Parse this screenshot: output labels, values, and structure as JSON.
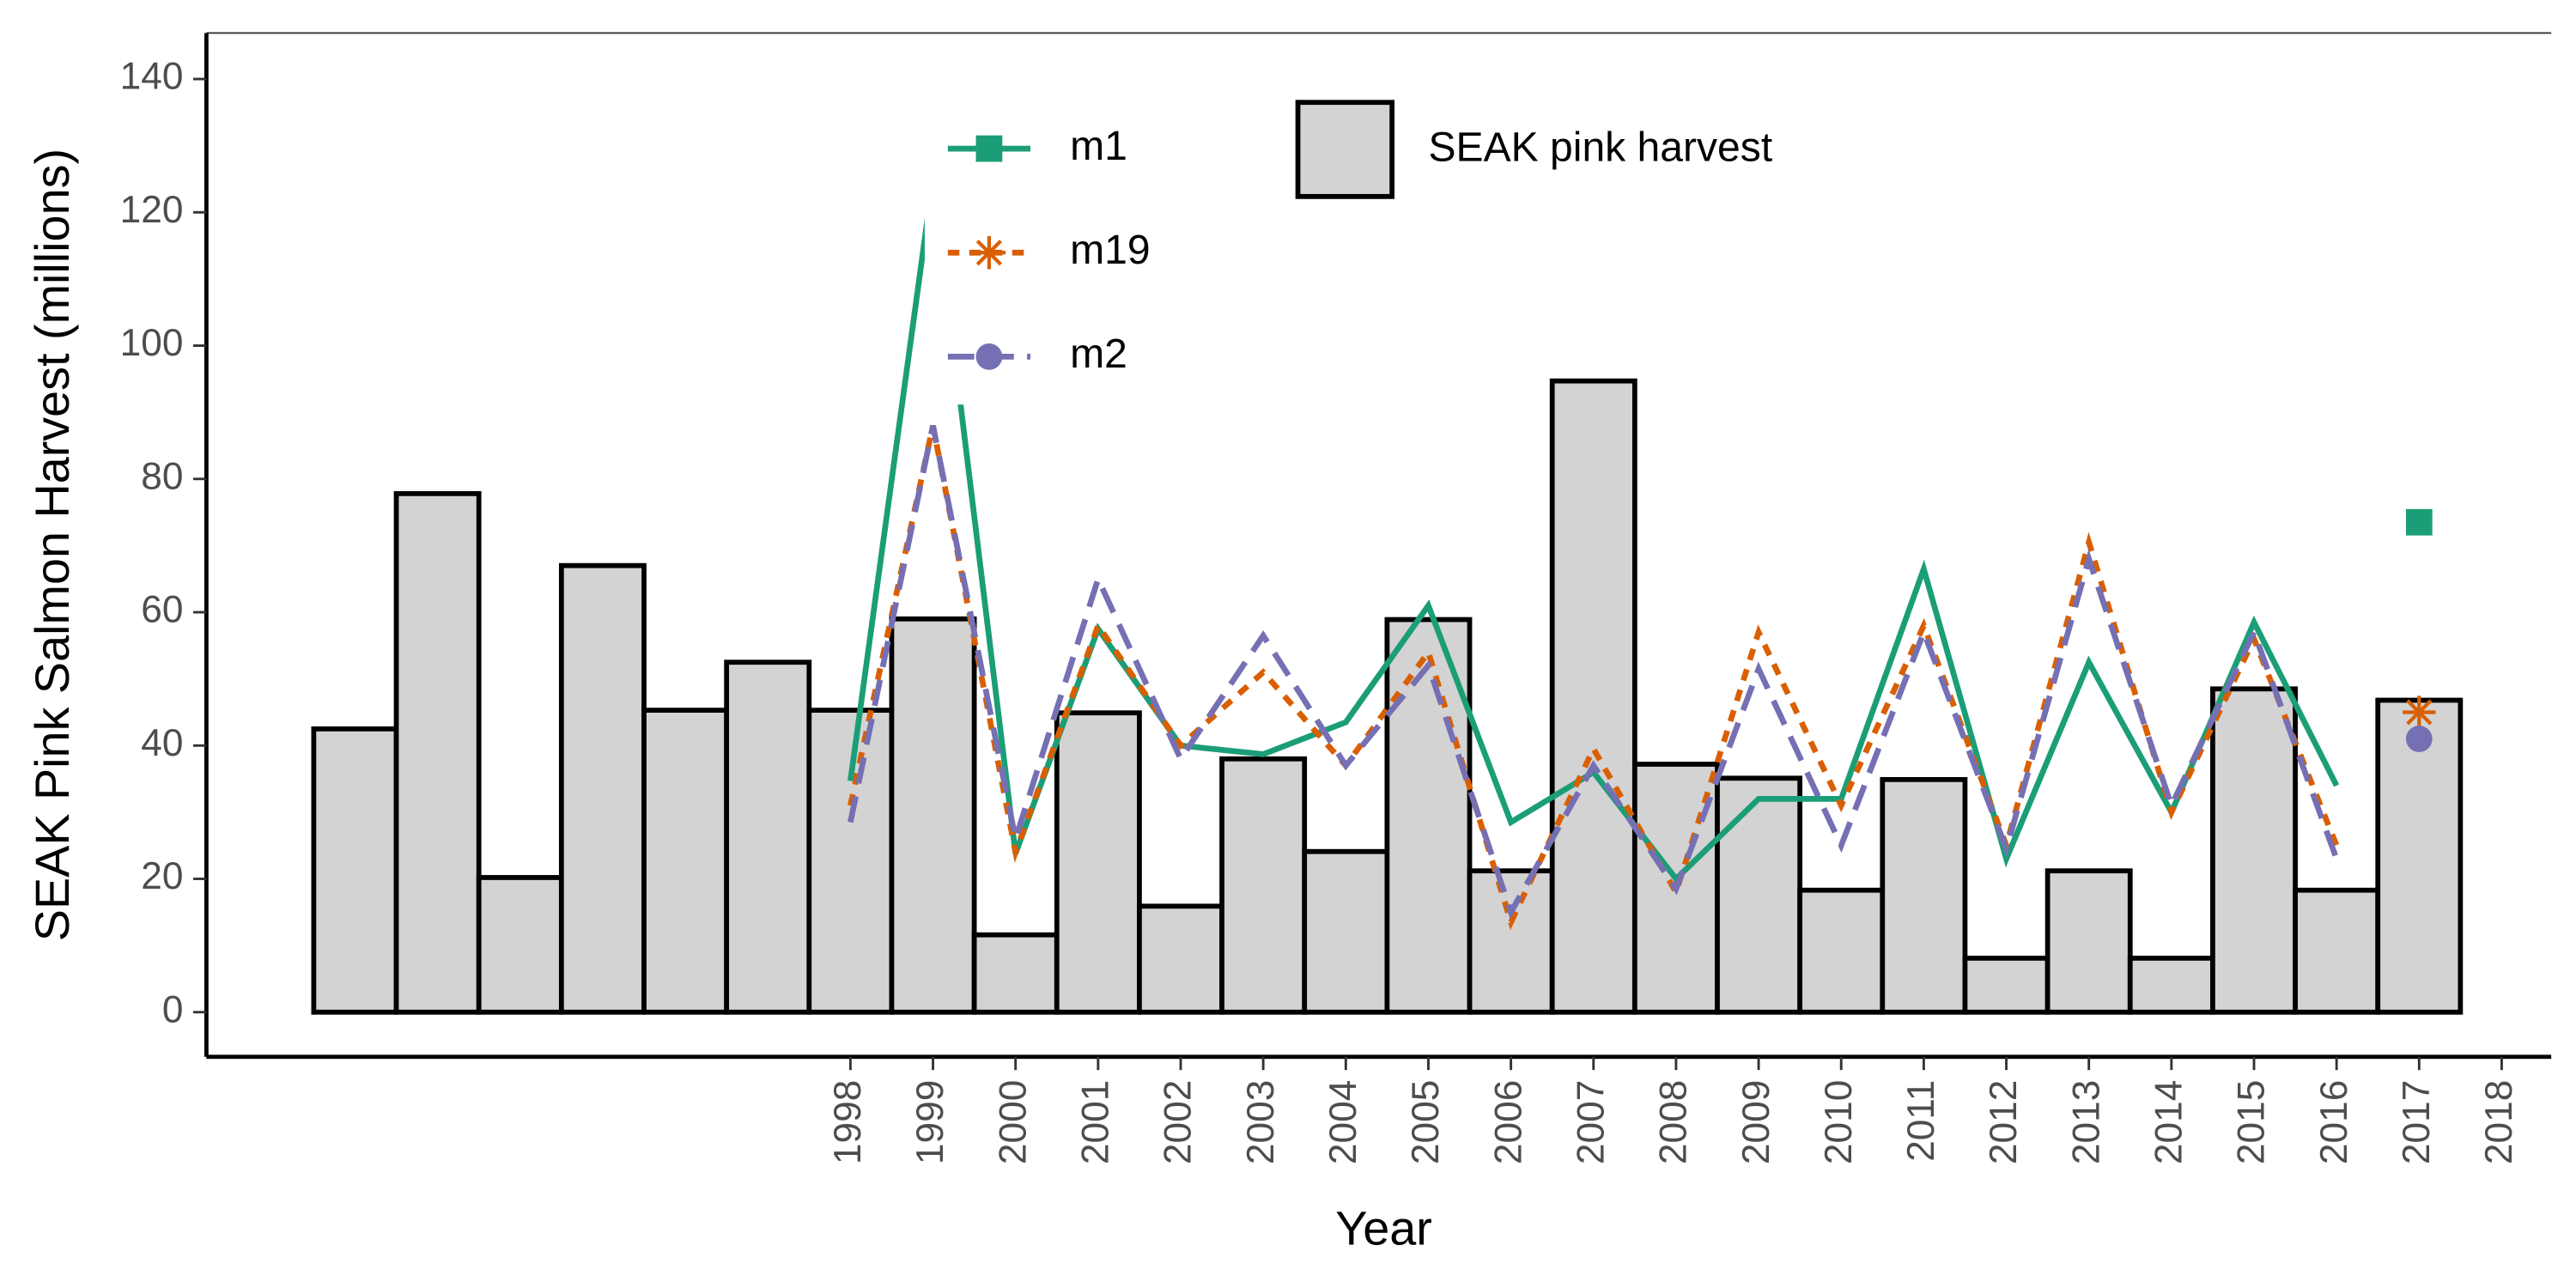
{
  "chart_data": {
    "type": "bar",
    "x_label": "Year",
    "y_label": "SEAK Pink Salmon Harvest (millions)",
    "xlim": [
      1990.2,
      2018.6
    ],
    "ylim": [
      -6.7,
      146.9
    ],
    "xticks": [
      1998,
      1999,
      2000,
      2001,
      2002,
      2003,
      2004,
      2005,
      2006,
      2007,
      2008,
      2009,
      2010,
      2011,
      2012,
      2013,
      2014,
      2015,
      2016,
      2017,
      2018
    ],
    "yticks": [
      0,
      20,
      40,
      60,
      80,
      100,
      120,
      140
    ],
    "series": [
      {
        "name": "SEAK pink harvest",
        "type": "bar",
        "color": "#d3d3d3",
        "x": [
          1992,
          1993,
          1994,
          1995,
          1996,
          1997,
          1998,
          1999,
          2000,
          2001,
          2002,
          2003,
          2004,
          2005,
          2006,
          2007,
          2008,
          2009,
          2010,
          2011,
          2012,
          2013,
          2014,
          2015,
          2016,
          2017
        ],
        "values": [
          42.5,
          77.8,
          20.2,
          67,
          45.3,
          52.5,
          45.3,
          59,
          11.6,
          44.9,
          15.9,
          38,
          24.1,
          58.9,
          21.2,
          94.7,
          37.2,
          35.1,
          18.3,
          34.9,
          8.1,
          21.2,
          8.1,
          48.5,
          18.3,
          46.8
        ]
      },
      {
        "name": "m1",
        "type": "line",
        "color": "#1b9e77",
        "dash": "solid",
        "marker": "square",
        "x": [
          1998,
          1999,
          2000,
          2001,
          2002,
          2003,
          2004,
          2005,
          2006,
          2007,
          2008,
          2009,
          2010,
          2011,
          2012,
          2013,
          2014,
          2015,
          2016,
          2017
        ],
        "values": [
          34.7,
          125,
          23.8,
          57.5,
          40,
          38.7,
          43.5,
          61,
          28.5,
          36,
          20,
          32,
          32,
          66.5,
          23,
          52.5,
          30,
          58.5,
          34,
          73.5
        ]
      },
      {
        "name": "m19",
        "type": "line",
        "color": "#d95f02",
        "dash": "dotted",
        "marker": "asterisk",
        "x": [
          1998,
          1999,
          2000,
          2001,
          2002,
          2003,
          2004,
          2005,
          2006,
          2007,
          2008,
          2009,
          2010,
          2011,
          2012,
          2013,
          2014,
          2015,
          2016,
          2017
        ],
        "values": [
          31,
          88,
          24,
          58,
          40,
          51,
          37,
          54,
          13.5,
          39.5,
          18,
          57,
          31,
          58,
          25,
          70.5,
          30,
          56,
          25,
          45
        ]
      },
      {
        "name": "m2",
        "type": "line",
        "color": "#7570b3",
        "dash": "dashed",
        "marker": "circle",
        "x": [
          1998,
          1999,
          2000,
          2001,
          2002,
          2003,
          2004,
          2005,
          2006,
          2007,
          2008,
          2009,
          2010,
          2011,
          2012,
          2013,
          2014,
          2015,
          2016,
          2017
        ],
        "values": [
          28.5,
          88,
          26,
          65,
          38,
          56.5,
          37,
          52,
          15,
          37,
          18.5,
          51.5,
          25,
          57,
          24.5,
          68,
          31,
          57,
          23,
          41
        ]
      }
    ]
  }
}
